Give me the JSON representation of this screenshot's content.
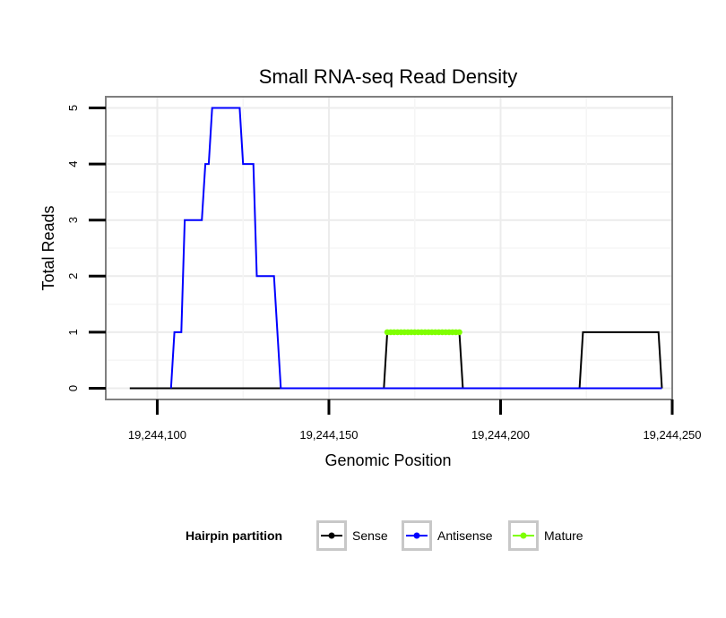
{
  "chart_data": {
    "type": "line",
    "title": "Small RNA-seq Read Density",
    "xlabel": "Genomic Position",
    "ylabel": "Total Reads",
    "xlim": [
      19244085,
      19244250
    ],
    "ylim": [
      -0.2,
      5.2
    ],
    "x_ticks": [
      19244100,
      19244150,
      19244200,
      19244250
    ],
    "x_tick_labels": [
      "19,244,100",
      "19,244,150",
      "19,244,200",
      "19,244,250"
    ],
    "y_ticks": [
      0,
      1,
      2,
      3,
      4,
      5
    ],
    "y_tick_labels": [
      "0",
      "1",
      "2",
      "3",
      "4",
      "5"
    ],
    "grid": true,
    "legend": {
      "title": "Hairpin partition",
      "position": "bottom",
      "entries": [
        {
          "label": "Sense",
          "color": "#000000"
        },
        {
          "label": "Antisense",
          "color": "#0000ff"
        },
        {
          "label": "Mature",
          "color": "#7fff00"
        }
      ]
    },
    "series": [
      {
        "name": "Sense",
        "color": "#000000",
        "x": [
          19244092,
          19244166,
          19244167,
          19244188,
          19244189,
          19244223,
          19244224,
          19244246,
          19244247
        ],
        "y": [
          0,
          0,
          1,
          1,
          0,
          0,
          1,
          1,
          0
        ]
      },
      {
        "name": "Antisense",
        "color": "#0000ff",
        "x": [
          19244104,
          19244105,
          19244107,
          19244108,
          19244113,
          19244114,
          19244115,
          19244116,
          19244124,
          19244125,
          19244128,
          19244129,
          19244134,
          19244136,
          19244247
        ],
        "y": [
          0,
          1,
          1,
          3,
          3,
          4,
          4,
          5,
          5,
          4,
          4,
          2,
          2,
          0,
          0
        ]
      },
      {
        "name": "Mature",
        "color": "#7fff00",
        "x": [
          19244167,
          19244168,
          19244169,
          19244170,
          19244171,
          19244172,
          19244173,
          19244174,
          19244175,
          19244176,
          19244177,
          19244178,
          19244179,
          19244180,
          19244181,
          19244182,
          19244183,
          19244184,
          19244185,
          19244186,
          19244187,
          19244188
        ],
        "y": [
          1,
          1,
          1,
          1,
          1,
          1,
          1,
          1,
          1,
          1,
          1,
          1,
          1,
          1,
          1,
          1,
          1,
          1,
          1,
          1,
          1,
          1
        ]
      }
    ]
  }
}
